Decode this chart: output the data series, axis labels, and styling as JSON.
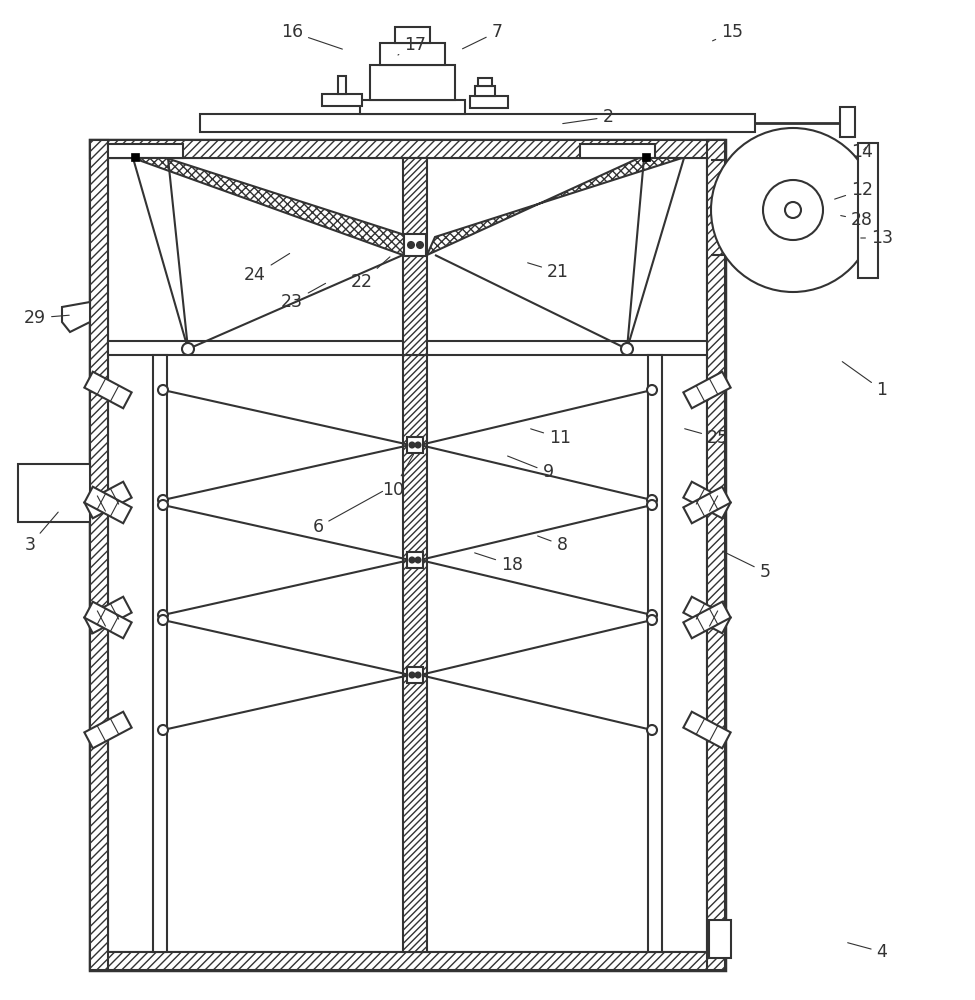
{
  "bg": "#ffffff",
  "lc": "#333333",
  "lw": 1.5,
  "tlw": 2.5
}
